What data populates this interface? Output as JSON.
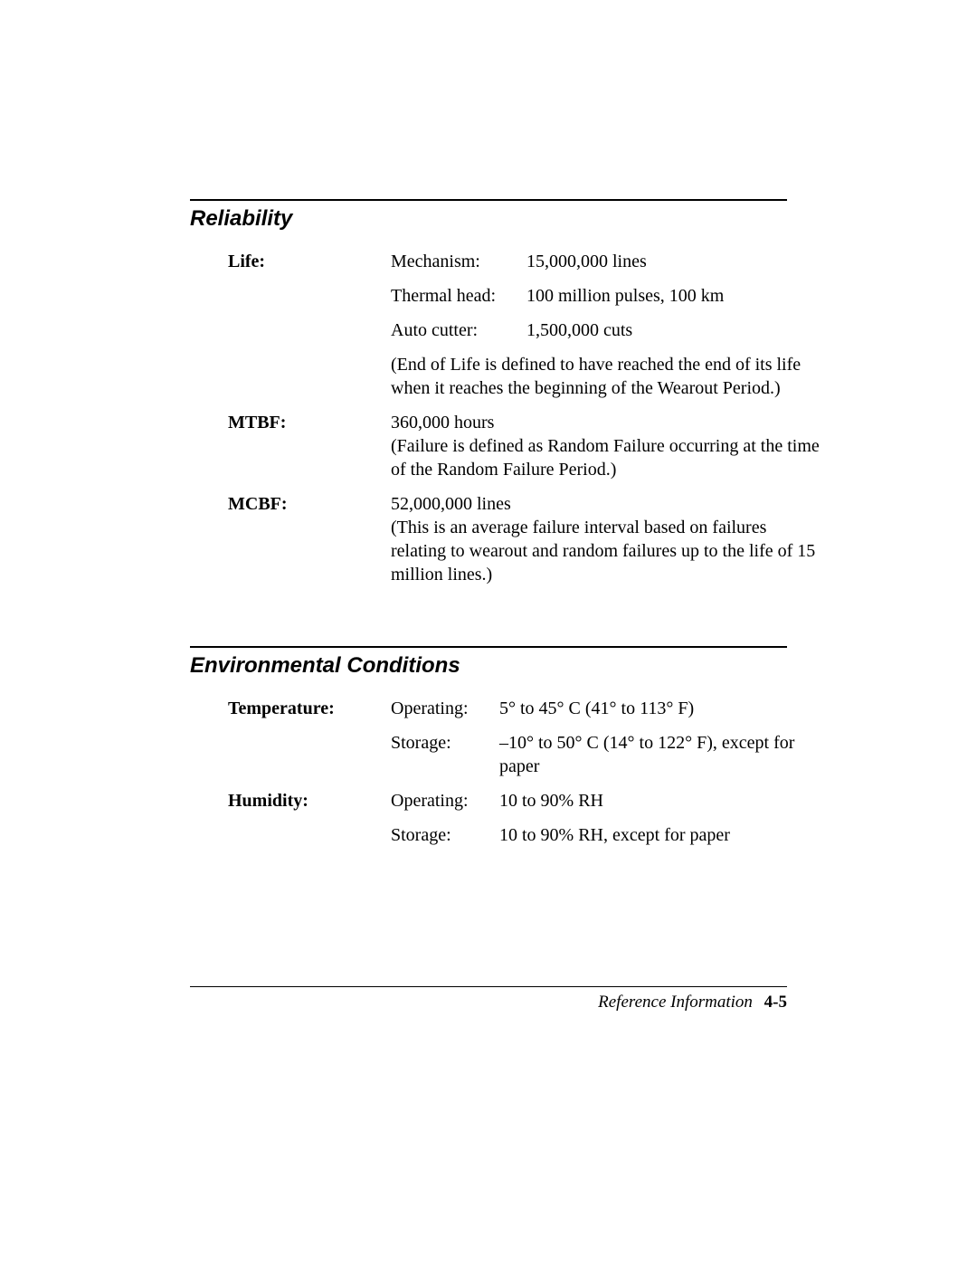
{
  "reliability": {
    "title": "Reliability",
    "rows": {
      "life": {
        "label": "Life:",
        "mechanism": {
          "label": "Mechanism:",
          "value": "15,000,000 lines"
        },
        "thermal": {
          "label": "Thermal head:",
          "value": "100 million pulses, 100 km"
        },
        "cutter": {
          "label": "Auto cutter:",
          "value": "1,500,000 cuts"
        },
        "note": "(End of Life is defined to have reached the end of its life when it reaches the beginning of the Wearout Period.)"
      },
      "mtbf": {
        "label": "MTBF:",
        "value": "360,000 hours\n(Failure is defined as Random Failure occurring at the time of the Random Failure Period.)"
      },
      "mcbf": {
        "label": "MCBF:",
        "value": "52,000,000 lines\n(This is an average failure interval based on failures relating to wearout and random failures up to the life of 15 million lines.)"
      }
    }
  },
  "environmental": {
    "title": "Environmental Conditions",
    "rows": {
      "temperature": {
        "label": "Temperature:",
        "operating": {
          "label": "Operating:",
          "value": "5° to 45° C (41° to 113° F)"
        },
        "storage": {
          "label": "Storage:",
          "value": "–10° to 50° C (14° to 122° F), except for paper"
        }
      },
      "humidity": {
        "label": "Humidity:",
        "operating": {
          "label": "Operating:",
          "value": "10 to 90% RH"
        },
        "storage": {
          "label": "Storage:",
          "value": "10 to 90% RH, except for paper"
        }
      }
    }
  },
  "footer": {
    "section": "Reference Information",
    "page": "4-5"
  }
}
